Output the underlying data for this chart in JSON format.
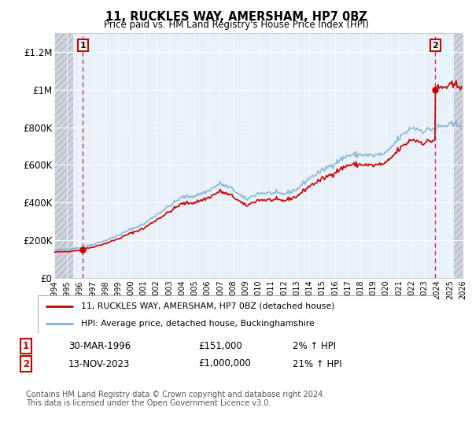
{
  "title": "11, RUCKLES WAY, AMERSHAM, HP7 0BZ",
  "subtitle": "Price paid vs. HM Land Registry's House Price Index (HPI)",
  "ylabel_ticks": [
    "£0",
    "£200K",
    "£400K",
    "£600K",
    "£800K",
    "£1M",
    "£1.2M"
  ],
  "ylim": [
    0,
    1300000
  ],
  "yticks": [
    0,
    200000,
    400000,
    600000,
    800000,
    1000000,
    1200000
  ],
  "x_start_year": 1994,
  "x_end_year": 2026,
  "transaction1_x": 1996.23,
  "transaction1_price": 151000,
  "transaction2_x": 2023.87,
  "transaction2_price": 1000000,
  "legend_line1": "11, RUCKLES WAY, AMERSHAM, HP7 0BZ (detached house)",
  "legend_line2": "HPI: Average price, detached house, Buckinghamshire",
  "note1_label": "1",
  "note1_date": "30-MAR-1996",
  "note1_price": "£151,000",
  "note1_hpi": "2% ↑ HPI",
  "note2_label": "2",
  "note2_date": "13-NOV-2023",
  "note2_price": "£1,000,000",
  "note2_hpi": "21% ↑ HPI",
  "footer": "Contains HM Land Registry data © Crown copyright and database right 2024.\nThis data is licensed under the Open Government Licence v3.0.",
  "line_color_red": "#cc0000",
  "line_color_blue": "#7bafd4",
  "bg_plot": "#e8f0f8",
  "hatch_color": "#d0d4dc",
  "hatch_before": 1995.5,
  "hatch_after": 2025.3
}
